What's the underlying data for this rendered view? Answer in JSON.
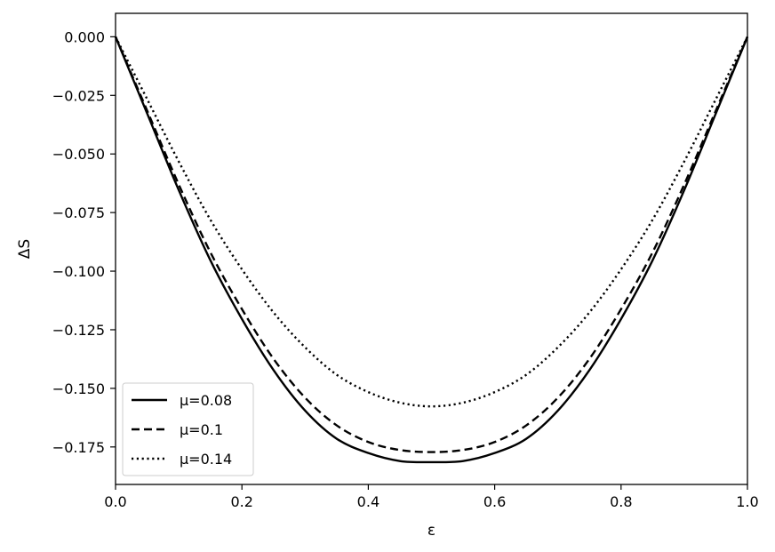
{
  "chart_data": {
    "type": "line",
    "title": "",
    "xlabel": "ε",
    "ylabel": "ΔS",
    "xlim": [
      0.0,
      1.0
    ],
    "ylim": [
      -0.191,
      0.01
    ],
    "x_ticks": [
      0.0,
      0.2,
      0.4,
      0.6,
      0.8,
      1.0
    ],
    "x_tick_labels": [
      "0.0",
      "0.2",
      "0.4",
      "0.6",
      "0.8",
      "1.0"
    ],
    "y_ticks": [
      0.0,
      -0.025,
      -0.05,
      -0.075,
      -0.1,
      -0.125,
      -0.15,
      -0.175
    ],
    "y_tick_labels": [
      "0.000",
      "−0.025",
      "−0.050",
      "−0.075",
      "−0.100",
      "−0.125",
      "−0.150",
      "−0.175"
    ],
    "grid": false,
    "legend_position": "bottom-left",
    "x": [
      0.0,
      0.05,
      0.1,
      0.15,
      0.2,
      0.25,
      0.3,
      0.35,
      0.4,
      0.45,
      0.5,
      0.55,
      0.6,
      0.65,
      0.7,
      0.75,
      0.8,
      0.85,
      0.9,
      0.95,
      1.0
    ],
    "series": [
      {
        "name": "μ=0.08",
        "legend_label": "μ=0.08",
        "color": "#000000",
        "line_style": "solid",
        "values": [
          0.0,
          -0.0327,
          -0.0654,
          -0.0953,
          -0.1204,
          -0.1422,
          -0.1595,
          -0.1715,
          -0.1776,
          -0.181,
          -0.1815,
          -0.181,
          -0.1776,
          -0.1715,
          -0.1595,
          -0.1422,
          -0.1204,
          -0.0953,
          -0.0654,
          -0.0327,
          0.0
        ]
      },
      {
        "name": "μ=0.1",
        "legend_label": "μ=0.1",
        "color": "#000000",
        "line_style": "dashed",
        "values": [
          0.0,
          -0.0315,
          -0.063,
          -0.0919,
          -0.1162,
          -0.1374,
          -0.154,
          -0.1658,
          -0.1729,
          -0.1763,
          -0.1772,
          -0.1763,
          -0.1729,
          -0.1658,
          -0.154,
          -0.1374,
          -0.1162,
          -0.0919,
          -0.063,
          -0.0315,
          0.0
        ]
      },
      {
        "name": "μ=0.14",
        "legend_label": "μ=0.14",
        "color": "#000000",
        "line_style": "dotted",
        "values": [
          0.0,
          -0.0266,
          -0.0532,
          -0.078,
          -0.0992,
          -0.1176,
          -0.1325,
          -0.1442,
          -0.1516,
          -0.1561,
          -0.1577,
          -0.1561,
          -0.1516,
          -0.1442,
          -0.1325,
          -0.1176,
          -0.0992,
          -0.078,
          -0.0532,
          -0.0266,
          0.0
        ]
      }
    ]
  }
}
